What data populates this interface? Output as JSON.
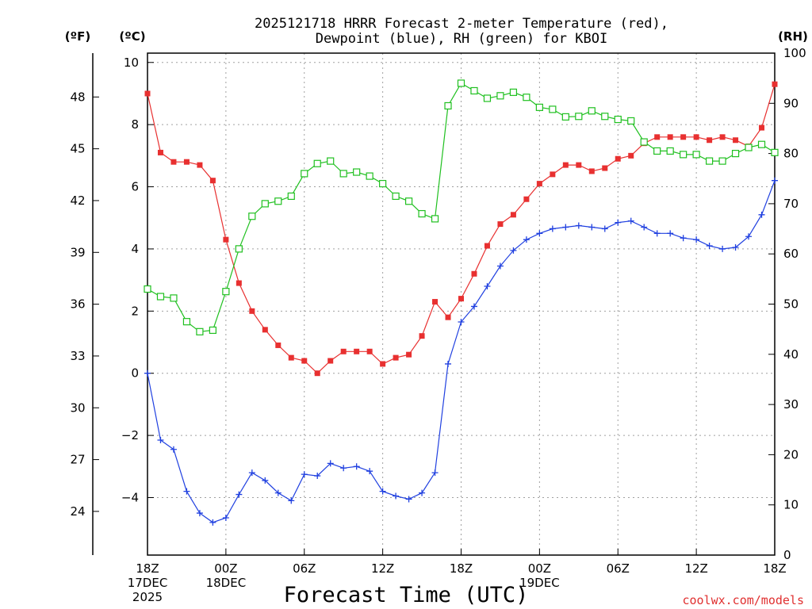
{
  "chart_data": {
    "type": "line",
    "title_line1": "2025121718 HRRR Forecast 2-meter Temperature (red),",
    "title_line2": "Dewpoint (blue), RH (green) for KBOI",
    "xlabel": "Forecast Time (UTC)",
    "credit": "coolwx.com/models",
    "left_unit_f": "(ºF)",
    "left_unit_c": "(ºC)",
    "right_unit": "(RH)",
    "x_hours": [
      0,
      1,
      2,
      3,
      4,
      5,
      6,
      7,
      8,
      9,
      10,
      11,
      12,
      13,
      14,
      15,
      16,
      17,
      18,
      19,
      20,
      21,
      22,
      23,
      24,
      25,
      26,
      27,
      28,
      29,
      30,
      31,
      32,
      33,
      34,
      35,
      36,
      37,
      38,
      39,
      40,
      41,
      42,
      43,
      44,
      45,
      46,
      47,
      48
    ],
    "xlim": [
      0,
      48
    ],
    "xticks": [
      {
        "hour": 0,
        "lines": [
          "18Z",
          "17DEC",
          "2025"
        ]
      },
      {
        "hour": 6,
        "lines": [
          "00Z",
          "18DEC"
        ]
      },
      {
        "hour": 12,
        "lines": [
          "06Z"
        ]
      },
      {
        "hour": 18,
        "lines": [
          "12Z"
        ]
      },
      {
        "hour": 24,
        "lines": [
          "18Z"
        ]
      },
      {
        "hour": 30,
        "lines": [
          "00Z",
          "19DEC"
        ]
      },
      {
        "hour": 36,
        "lines": [
          "06Z"
        ]
      },
      {
        "hour": 42,
        "lines": [
          "12Z"
        ]
      },
      {
        "hour": 48,
        "lines": [
          "18Z"
        ]
      }
    ],
    "ylim_c": [
      -5.85,
      10.3
    ],
    "yticks_c": [
      "10",
      "8",
      "6",
      "4",
      "2",
      "0",
      "−2",
      "−4"
    ],
    "yticks_c_values": [
      10,
      8,
      6,
      4,
      2,
      0,
      -2,
      -4
    ],
    "yticks_f": [
      "48",
      "45",
      "42",
      "39",
      "36",
      "33",
      "30",
      "27",
      "24"
    ],
    "yticks_f_values": [
      48,
      45,
      42,
      39,
      36,
      33,
      30,
      27,
      24
    ],
    "ylim_rh": [
      0,
      100
    ],
    "yticks_rh": [
      "100",
      "90",
      "80",
      "70",
      "60",
      "50",
      "40",
      "30",
      "20",
      "10",
      "0"
    ],
    "yticks_rh_values": [
      100,
      90,
      80,
      70,
      60,
      50,
      40,
      30,
      20,
      10,
      0
    ],
    "grid": true,
    "series": [
      {
        "name": "2-meter Temperature",
        "axis": "c",
        "color": "#e83030",
        "marker": "filled-square",
        "values": [
          9.0,
          7.1,
          6.8,
          6.8,
          6.7,
          6.2,
          4.3,
          2.9,
          2.0,
          1.4,
          0.9,
          0.5,
          0.4,
          0.0,
          0.4,
          0.7,
          0.7,
          0.7,
          0.3,
          0.5,
          0.6,
          1.2,
          2.3,
          1.8,
          2.4,
          3.2,
          4.1,
          4.8,
          5.1,
          5.6,
          6.1,
          6.4,
          6.7,
          6.7,
          6.5,
          6.6,
          6.9,
          7.0,
          7.4,
          7.6,
          7.6,
          7.6,
          7.6,
          7.5,
          7.6,
          7.5,
          7.3,
          7.9,
          9.3
        ]
      },
      {
        "name": "Dewpoint",
        "axis": "c",
        "color": "#2040e0",
        "marker": "plus",
        "values": [
          0.0,
          -2.15,
          -2.45,
          -3.8,
          -4.5,
          -4.8,
          -4.65,
          -3.9,
          -3.2,
          -3.45,
          -3.85,
          -4.1,
          -3.25,
          -3.3,
          -2.9,
          -3.05,
          -3.0,
          -3.15,
          -3.8,
          -3.95,
          -4.05,
          -3.85,
          -3.2,
          0.3,
          1.65,
          2.15,
          2.8,
          3.45,
          3.95,
          4.3,
          4.5,
          4.65,
          4.7,
          4.75,
          4.7,
          4.65,
          4.85,
          4.9,
          4.7,
          4.5,
          4.5,
          4.35,
          4.3,
          4.1,
          4.0,
          4.05,
          4.4,
          5.1,
          6.2
        ]
      },
      {
        "name": "RH",
        "axis": "rh",
        "color": "#20c020",
        "marker": "open-square",
        "values": [
          53,
          51.5,
          51.2,
          46.5,
          44.5,
          44.8,
          52.5,
          61,
          67.5,
          70,
          70.5,
          71.5,
          76,
          78,
          78.5,
          76,
          76.3,
          75.5,
          74,
          71.5,
          70.5,
          68,
          67,
          89.5,
          94,
          92.5,
          91,
          91.5,
          92.2,
          91.2,
          89.2,
          88.8,
          87.3,
          87.4,
          88.5,
          87.4,
          86.8,
          86.5,
          82.3,
          80.5,
          80.5,
          79.8,
          79.8,
          78.5,
          78.5,
          80,
          81.2,
          81.8,
          80.2
        ]
      }
    ]
  }
}
